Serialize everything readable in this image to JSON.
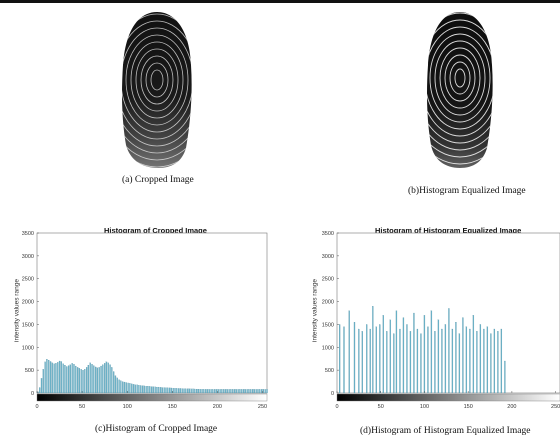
{
  "figures": {
    "a": {
      "caption": "(a) Cropped Image"
    },
    "b": {
      "caption": "(b)Histogram Equalized Image"
    }
  },
  "charts": {
    "c": {
      "caption": "(c)Histogram of Cropped Image"
    },
    "d": {
      "caption": "(d)Histogram of Histogram Equalized Image"
    }
  },
  "chart_data": [
    {
      "type": "bar",
      "title": "Histogram of Cropped Image",
      "ylabel": "intensity values range",
      "xlabel": "",
      "xlim": [
        0,
        255
      ],
      "ylim": [
        0,
        3500
      ],
      "xticks": [
        0,
        50,
        100,
        150,
        200,
        250
      ],
      "yticks": [
        0,
        500,
        1000,
        1500,
        2000,
        2500,
        3000,
        3500
      ],
      "colorbar": "grayscale",
      "bar_color": "#6fb6cc",
      "x": [
        1,
        3,
        5,
        7,
        9,
        11,
        13,
        15,
        17,
        19,
        21,
        23,
        25,
        27,
        29,
        31,
        33,
        35,
        37,
        39,
        41,
        43,
        45,
        47,
        49,
        51,
        53,
        55,
        57,
        59,
        61,
        63,
        65,
        67,
        69,
        71,
        73,
        75,
        77,
        79,
        81,
        83,
        85,
        87,
        89,
        91,
        93,
        95,
        97,
        99,
        101,
        103,
        105,
        107,
        109,
        111,
        113,
        115,
        117,
        119,
        121,
        123,
        125,
        127,
        129,
        131,
        133,
        135,
        137,
        139,
        141,
        143,
        145,
        147,
        149,
        151,
        153,
        155,
        157,
        159,
        161,
        163,
        165,
        167,
        169,
        171,
        173,
        175,
        177,
        179,
        181,
        183,
        185,
        187,
        189,
        191,
        193,
        195,
        197,
        199,
        201,
        203,
        205,
        207,
        209,
        211,
        213,
        215,
        217,
        219,
        221,
        223,
        225,
        227,
        229,
        231,
        233,
        235,
        237,
        239,
        241,
        243,
        245,
        247,
        249,
        251,
        253,
        255
      ],
      "values": [
        30,
        120,
        320,
        520,
        680,
        740,
        720,
        690,
        660,
        640,
        650,
        670,
        700,
        690,
        640,
        610,
        580,
        600,
        620,
        650,
        630,
        590,
        560,
        540,
        520,
        500,
        520,
        560,
        610,
        660,
        630,
        600,
        570,
        550,
        560,
        590,
        620,
        650,
        680,
        660,
        620,
        560,
        470,
        380,
        330,
        290,
        270,
        250,
        240,
        230,
        220,
        210,
        200,
        190,
        180,
        180,
        170,
        165,
        160,
        155,
        150,
        150,
        145,
        140,
        140,
        135,
        130,
        130,
        125,
        120,
        120,
        118,
        115,
        112,
        110,
        108,
        105,
        103,
        100,
        100,
        98,
        96,
        95,
        93,
        92,
        90,
        90,
        88,
        86,
        85,
        84,
        83,
        82,
        81,
        80,
        80,
        80,
        80,
        80,
        80,
        80,
        80,
        80,
        80,
        80,
        80,
        80,
        80,
        80,
        80,
        80,
        80,
        80,
        80,
        80,
        80,
        80,
        80,
        80,
        80,
        80,
        80,
        80,
        80,
        80,
        80,
        80,
        80
      ]
    },
    {
      "type": "bar",
      "title": "Histogram of Histogram Equalized Image",
      "ylabel": "intensity values range",
      "xlabel": "",
      "xlim": [
        0,
        255
      ],
      "ylim": [
        0,
        3500
      ],
      "xticks": [
        0,
        50,
        100,
        150,
        200,
        250
      ],
      "yticks": [
        0,
        500,
        1000,
        1500,
        2000,
        2500,
        3000,
        3500
      ],
      "colorbar": "grayscale",
      "bar_color": "#6fb6cc",
      "x": [
        3,
        8,
        14,
        20,
        25,
        29,
        34,
        38,
        41,
        45,
        49,
        53,
        57,
        61,
        65,
        68,
        72,
        76,
        80,
        84,
        88,
        92,
        96,
        100,
        104,
        108,
        112,
        116,
        120,
        124,
        128,
        132,
        136,
        140,
        144,
        148,
        152,
        156,
        160,
        164,
        168,
        172,
        176,
        180,
        184,
        188,
        192
      ],
      "values": [
        1500,
        1450,
        1800,
        1550,
        1400,
        1350,
        1500,
        1400,
        1900,
        1450,
        1500,
        1700,
        1350,
        1600,
        1300,
        1800,
        1400,
        1650,
        1500,
        1350,
        1750,
        1400,
        1300,
        1700,
        1450,
        1800,
        1350,
        1600,
        1400,
        1500,
        1850,
        1400,
        1550,
        1300,
        1650,
        1450,
        1400,
        1700,
        1350,
        1500,
        1400,
        1450,
        1300,
        1400,
        1350,
        1400,
        700
      ]
    }
  ]
}
